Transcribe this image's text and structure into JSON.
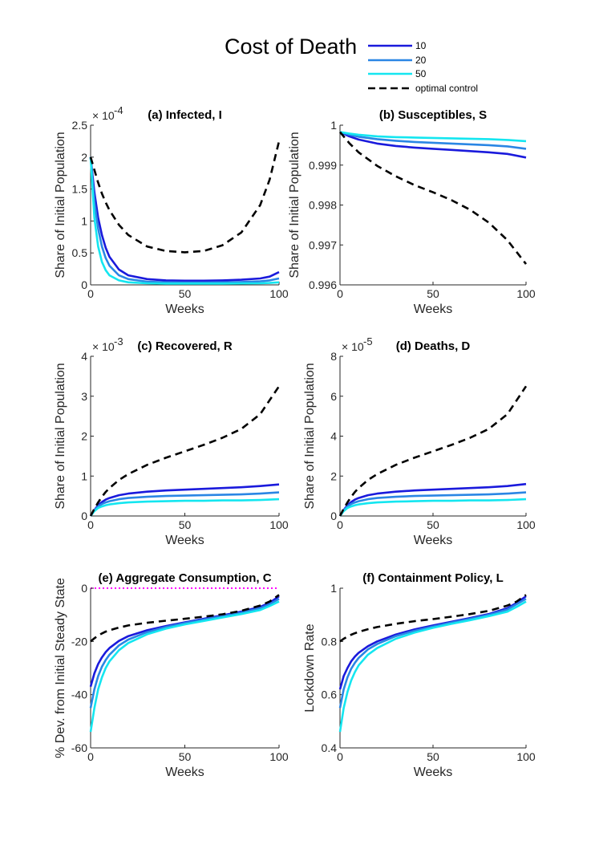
{
  "figure": {
    "title": "Cost of Death",
    "legend": [
      {
        "label": "10",
        "color": "#1a1adc",
        "dash": "solid"
      },
      {
        "label": "20",
        "color": "#2a86e4",
        "dash": "solid"
      },
      {
        "label": "50",
        "color": "#14e6f0",
        "dash": "solid"
      },
      {
        "label": "optimal control",
        "color": "#000000",
        "dash": "dashed"
      }
    ]
  },
  "chart_data": [
    {
      "id": "a",
      "type": "line",
      "title": "(a) Infected, I",
      "xlabel": "Weeks",
      "ylabel": "Share of Initial Population",
      "xlim": [
        0,
        100
      ],
      "ylim": [
        0,
        2.5
      ],
      "exponent": "-4",
      "xticks": [
        0,
        50,
        100
      ],
      "xtick_labels": [
        "0",
        "50",
        "100"
      ],
      "yticks": [
        0,
        0.5,
        1,
        1.5,
        2,
        2.5
      ],
      "ytick_labels": [
        "0",
        "0.5",
        "1",
        "1.5",
        "2",
        "2.5"
      ],
      "x": [
        0,
        2,
        4,
        6,
        8,
        10,
        15,
        20,
        30,
        40,
        50,
        60,
        70,
        80,
        90,
        95,
        100
      ],
      "series": [
        {
          "name": "10",
          "values": [
            2.0,
            1.45,
            1.05,
            0.78,
            0.58,
            0.44,
            0.24,
            0.15,
            0.09,
            0.07,
            0.065,
            0.065,
            0.07,
            0.08,
            0.1,
            0.13,
            0.2
          ]
        },
        {
          "name": "20",
          "values": [
            2.0,
            1.3,
            0.88,
            0.6,
            0.42,
            0.3,
            0.15,
            0.09,
            0.05,
            0.04,
            0.037,
            0.037,
            0.04,
            0.045,
            0.055,
            0.07,
            0.1
          ]
        },
        {
          "name": "50",
          "values": [
            2.0,
            1.05,
            0.6,
            0.36,
            0.23,
            0.15,
            0.07,
            0.04,
            0.025,
            0.02,
            0.02,
            0.02,
            0.02,
            0.022,
            0.025,
            0.03,
            0.04
          ]
        },
        {
          "name": "optimal control",
          "values": [
            2.0,
            1.8,
            1.6,
            1.43,
            1.29,
            1.17,
            0.94,
            0.78,
            0.6,
            0.53,
            0.51,
            0.53,
            0.62,
            0.82,
            1.25,
            1.65,
            2.25
          ]
        }
      ]
    },
    {
      "id": "b",
      "type": "line",
      "title": "(b) Susceptibles, S",
      "xlabel": "Weeks",
      "ylabel": "Share of Initial Population",
      "xlim": [
        0,
        100
      ],
      "ylim": [
        0.996,
        1.0
      ],
      "exponent": "",
      "xticks": [
        0,
        50,
        100
      ],
      "xtick_labels": [
        "0",
        "50",
        "100"
      ],
      "yticks": [
        0.996,
        0.997,
        0.998,
        0.999,
        1.0
      ],
      "ytick_labels": [
        "0.996",
        "0.997",
        "0.998",
        "0.999",
        "1"
      ],
      "x": [
        0,
        5,
        10,
        20,
        30,
        40,
        50,
        60,
        70,
        80,
        90,
        100
      ],
      "series": [
        {
          "name": "10",
          "values": [
            0.99983,
            0.99972,
            0.99964,
            0.99954,
            0.99948,
            0.99944,
            0.99941,
            0.99938,
            0.99935,
            0.99932,
            0.99928,
            0.99919
          ]
        },
        {
          "name": "20",
          "values": [
            0.99983,
            0.99976,
            0.99971,
            0.99965,
            0.99961,
            0.99958,
            0.99956,
            0.99954,
            0.99952,
            0.9995,
            0.99947,
            0.99941
          ]
        },
        {
          "name": "50",
          "values": [
            0.99983,
            0.99979,
            0.99976,
            0.99972,
            0.9997,
            0.99969,
            0.99968,
            0.99967,
            0.99966,
            0.99965,
            0.99963,
            0.9996
          ]
        },
        {
          "name": "optimal control",
          "values": [
            0.99983,
            0.99955,
            0.99932,
            0.99898,
            0.99872,
            0.9985,
            0.99832,
            0.99812,
            0.99788,
            0.99756,
            0.99712,
            0.99652
          ]
        }
      ]
    },
    {
      "id": "c",
      "type": "line",
      "title": "(c) Recovered, R",
      "xlabel": "Weeks",
      "ylabel": "Share of Initial Population",
      "xlim": [
        0,
        100
      ],
      "ylim": [
        0,
        4
      ],
      "exponent": "-3",
      "xticks": [
        0,
        50,
        100
      ],
      "xtick_labels": [
        "0",
        "50",
        "100"
      ],
      "yticks": [
        0,
        1,
        2,
        3,
        4
      ],
      "ytick_labels": [
        "0",
        "1",
        "2",
        "3",
        "4"
      ],
      "x": [
        0,
        2,
        4,
        6,
        8,
        10,
        15,
        20,
        30,
        40,
        50,
        60,
        70,
        80,
        90,
        100
      ],
      "series": [
        {
          "name": "10",
          "values": [
            0,
            0.15,
            0.27,
            0.35,
            0.41,
            0.45,
            0.52,
            0.56,
            0.61,
            0.64,
            0.66,
            0.68,
            0.7,
            0.72,
            0.75,
            0.79
          ]
        },
        {
          "name": "20",
          "values": [
            0,
            0.14,
            0.24,
            0.3,
            0.34,
            0.37,
            0.42,
            0.45,
            0.48,
            0.5,
            0.51,
            0.52,
            0.53,
            0.54,
            0.56,
            0.59
          ]
        },
        {
          "name": "50",
          "values": [
            0,
            0.12,
            0.2,
            0.24,
            0.27,
            0.29,
            0.32,
            0.34,
            0.36,
            0.37,
            0.38,
            0.38,
            0.39,
            0.39,
            0.4,
            0.42
          ]
        },
        {
          "name": "optimal control",
          "values": [
            0,
            0.18,
            0.34,
            0.48,
            0.6,
            0.7,
            0.9,
            1.05,
            1.28,
            1.46,
            1.62,
            1.78,
            1.96,
            2.18,
            2.55,
            3.25
          ]
        }
      ]
    },
    {
      "id": "d",
      "type": "line",
      "title": "(d) Deaths, D",
      "xlabel": "Weeks",
      "ylabel": "Share of Initial Population",
      "xlim": [
        0,
        100
      ],
      "ylim": [
        0,
        8
      ],
      "exponent": "-5",
      "xticks": [
        0,
        50,
        100
      ],
      "xtick_labels": [
        "0",
        "50",
        "100"
      ],
      "yticks": [
        0,
        2,
        4,
        6,
        8
      ],
      "ytick_labels": [
        "0",
        "2",
        "4",
        "6",
        "8"
      ],
      "x": [
        0,
        2,
        4,
        6,
        8,
        10,
        15,
        20,
        30,
        40,
        50,
        60,
        70,
        80,
        90,
        100
      ],
      "series": [
        {
          "name": "10",
          "values": [
            0,
            0.3,
            0.54,
            0.7,
            0.82,
            0.9,
            1.04,
            1.12,
            1.22,
            1.28,
            1.32,
            1.36,
            1.4,
            1.44,
            1.5,
            1.6
          ]
        },
        {
          "name": "20",
          "values": [
            0,
            0.28,
            0.48,
            0.6,
            0.68,
            0.74,
            0.84,
            0.9,
            0.96,
            1.0,
            1.02,
            1.04,
            1.06,
            1.08,
            1.12,
            1.18
          ]
        },
        {
          "name": "50",
          "values": [
            0,
            0.24,
            0.4,
            0.48,
            0.54,
            0.58,
            0.64,
            0.68,
            0.72,
            0.74,
            0.76,
            0.76,
            0.78,
            0.78,
            0.8,
            0.84
          ]
        },
        {
          "name": "optimal control",
          "values": [
            0,
            0.36,
            0.68,
            0.96,
            1.2,
            1.4,
            1.8,
            2.1,
            2.56,
            2.92,
            3.24,
            3.56,
            3.92,
            4.36,
            5.1,
            6.5
          ]
        }
      ]
    },
    {
      "id": "e",
      "type": "line",
      "title": "(e) Aggregate Consumption, C",
      "xlabel": "Weeks",
      "ylabel": "% Dev. from Initial Steady State",
      "xlim": [
        0,
        100
      ],
      "ylim": [
        -60,
        0
      ],
      "exponent": "",
      "xticks": [
        0,
        50,
        100
      ],
      "xtick_labels": [
        "0",
        "50",
        "100"
      ],
      "yticks": [
        -60,
        -40,
        -20,
        0
      ],
      "ytick_labels": [
        "-60",
        "-40",
        "-20",
        "0"
      ],
      "reference_line": {
        "y": 0,
        "color": "#ff00ff"
      },
      "x": [
        0,
        2,
        4,
        6,
        8,
        10,
        15,
        20,
        30,
        40,
        50,
        60,
        70,
        80,
        90,
        95,
        100
      ],
      "series": [
        {
          "name": "10",
          "values": [
            -37,
            -32,
            -28.5,
            -26,
            -24,
            -22.5,
            -19.8,
            -18,
            -15.8,
            -14.2,
            -12.8,
            -11.5,
            -10.2,
            -8.8,
            -7,
            -5.5,
            -3
          ]
        },
        {
          "name": "20",
          "values": [
            -45,
            -38,
            -33,
            -29.5,
            -27,
            -25,
            -21.5,
            -19.3,
            -16.5,
            -14.6,
            -13.1,
            -11.8,
            -10.5,
            -9.2,
            -7.5,
            -6,
            -4
          ]
        },
        {
          "name": "50",
          "values": [
            -54,
            -45,
            -38,
            -33.5,
            -30,
            -27.5,
            -23.3,
            -20.6,
            -17.3,
            -15.2,
            -13.6,
            -12.3,
            -11,
            -9.7,
            -8.2,
            -6.7,
            -5
          ]
        },
        {
          "name": "optimal control",
          "values": [
            -20,
            -18.8,
            -17.8,
            -17,
            -16.3,
            -15.8,
            -14.8,
            -14,
            -13,
            -12.2,
            -11.5,
            -10.7,
            -9.8,
            -8.5,
            -6.5,
            -5,
            -2.5
          ]
        }
      ]
    },
    {
      "id": "f",
      "type": "line",
      "title": "(f) Containment Policy, L",
      "xlabel": "Weeks",
      "ylabel": "Lockdown Rate",
      "xlim": [
        0,
        100
      ],
      "ylim": [
        0.4,
        1.0
      ],
      "exponent": "",
      "xticks": [
        0,
        50,
        100
      ],
      "xtick_labels": [
        "0",
        "50",
        "100"
      ],
      "yticks": [
        0.4,
        0.6,
        0.8,
        1.0
      ],
      "ytick_labels": [
        "0.4",
        "0.6",
        "0.8",
        "1"
      ],
      "x": [
        0,
        2,
        4,
        6,
        8,
        10,
        15,
        20,
        30,
        40,
        50,
        60,
        70,
        80,
        90,
        95,
        100
      ],
      "series": [
        {
          "name": "10",
          "values": [
            0.62,
            0.67,
            0.7,
            0.725,
            0.743,
            0.757,
            0.782,
            0.8,
            0.826,
            0.845,
            0.86,
            0.874,
            0.888,
            0.903,
            0.925,
            0.945,
            0.97
          ]
        },
        {
          "name": "20",
          "values": [
            0.55,
            0.62,
            0.665,
            0.697,
            0.72,
            0.738,
            0.77,
            0.79,
            0.82,
            0.84,
            0.856,
            0.871,
            0.885,
            0.9,
            0.92,
            0.94,
            0.96
          ]
        },
        {
          "name": "50",
          "values": [
            0.46,
            0.55,
            0.61,
            0.653,
            0.685,
            0.71,
            0.75,
            0.775,
            0.81,
            0.833,
            0.851,
            0.866,
            0.88,
            0.895,
            0.912,
            0.93,
            0.95
          ]
        },
        {
          "name": "optimal control",
          "values": [
            0.8,
            0.81,
            0.818,
            0.825,
            0.831,
            0.836,
            0.846,
            0.854,
            0.866,
            0.876,
            0.884,
            0.893,
            0.903,
            0.915,
            0.935,
            0.95,
            0.975
          ]
        }
      ]
    }
  ]
}
